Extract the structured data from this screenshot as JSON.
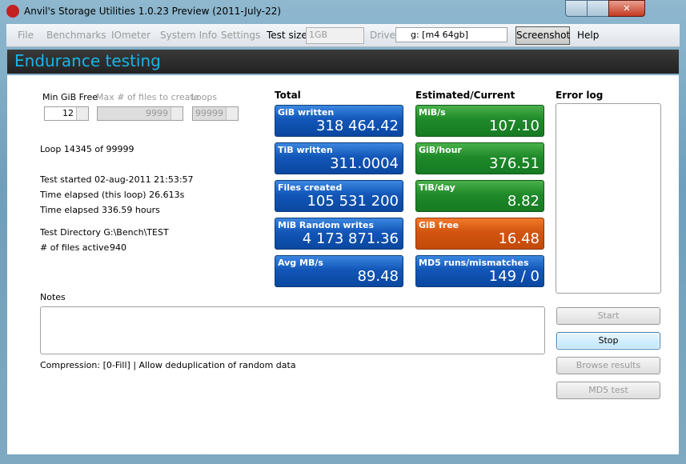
{
  "window": {
    "title": "Anvil's Storage Utilities 1.0.23 Preview (2011-July-22)"
  },
  "menu": {
    "file": "File",
    "benchmarks": "Benchmarks",
    "iometer": "IOmeter",
    "system_info": "System Info",
    "settings": "Settings",
    "test_size_label": "Test size",
    "test_size": "1GB",
    "drive_label": "Drive",
    "drive": "g: [m4 64gb]",
    "screenshot": "Screenshot",
    "help": "Help"
  },
  "header": {
    "title": "Endurance testing"
  },
  "fields": [
    {
      "label": "Min GiB Free",
      "value": "12"
    },
    {
      "label": "Max # of files to create",
      "value": "9999"
    },
    {
      "label": "Loops",
      "value": "99999"
    }
  ],
  "info": {
    "loop": "Loop 14345 of 99999",
    "started": "Test started 02-aug-2011 21:53:57",
    "elapsed_loop": "Time elapsed (this loop) 26.613s",
    "elapsed": "Time elapsed 336.59 hours",
    "directory": "Test Directory G:\\Bench\\TEST",
    "files_active_label": "# of files active",
    "files_active": "940"
  },
  "total": {
    "heading": "Total",
    "tiles": [
      {
        "label": "GiB written",
        "value": "318 464.42"
      },
      {
        "label": "TiB written",
        "value": "311.0004"
      },
      {
        "label": "Files created",
        "value": "105 531 200"
      },
      {
        "label": "MiB Random writes",
        "value": "4 173 871.36"
      },
      {
        "label": "Avg MB/s",
        "value": "89.48"
      }
    ]
  },
  "current": {
    "heading": "Estimated/Current",
    "tiles": [
      {
        "label": "MiB/s",
        "value": "107.10"
      },
      {
        "label": "GiB/hour",
        "value": "376.51"
      },
      {
        "label": "TiB/day",
        "value": "8.82"
      },
      {
        "label": "GiB free",
        "value": "16.48"
      },
      {
        "label": "MD5 runs/mismatches",
        "value": "149 / 0"
      }
    ]
  },
  "error_log": {
    "heading": "Error log"
  },
  "notes": {
    "label": "Notes",
    "compression": "Compression: [0-Fill] | Allow deduplication of random data"
  },
  "buttons": {
    "start": "Start",
    "stop": "Stop",
    "browse": "Browse results",
    "md5": "MD5 test"
  }
}
